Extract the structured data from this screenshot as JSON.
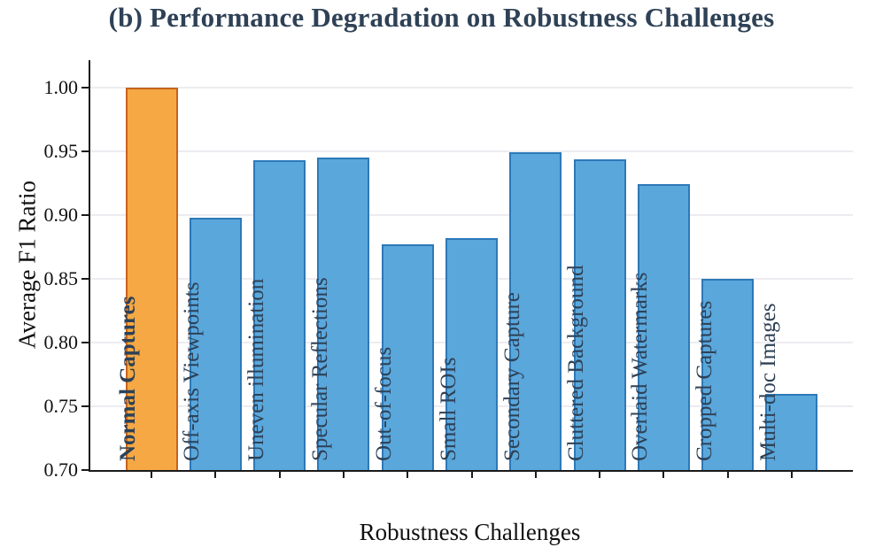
{
  "title": "(b) Performance Degradation on Robustness Challenges",
  "chart_data": {
    "type": "bar",
    "title": "(b) Performance Degradation on Robustness Challenges",
    "xlabel": "Robustness Challenges",
    "ylabel": "Average F1 Ratio",
    "ylim": [
      0.7,
      1.02
    ],
    "yticks": [
      0.7,
      0.75,
      0.8,
      0.85,
      0.9,
      0.95,
      1.0
    ],
    "grid": "horizontal",
    "legend_position": "none",
    "categories": [
      "Normal Captures",
      "Off-axis Viewpoints",
      "Uneven illumination",
      "Specular Reflections",
      "Out-of-focus",
      "Small ROIs",
      "Secondary Capture",
      "Cluttered Background",
      "Overlaid Watermarks",
      "Cropped Captures",
      "Multi-doc Images"
    ],
    "values": [
      1.0,
      0.898,
      0.943,
      0.945,
      0.877,
      0.882,
      0.949,
      0.944,
      0.924,
      0.85,
      0.76
    ],
    "highlight_index": 0,
    "highlight_category": "Normal Captures",
    "bar_label_orientation": "vertical"
  },
  "colors": {
    "bar_fill": "#5AA7DC",
    "bar_edge": "#2C79B8",
    "highlight_fill": "#F5A843",
    "highlight_edge": "#C8641A",
    "title_text": "#2E4156",
    "bar_label_text": "#2E4156",
    "axis_text": "#111111",
    "axis_line": "#1a1a1a",
    "gridline": "#ECECF1",
    "background": "#FFFFFF"
  }
}
